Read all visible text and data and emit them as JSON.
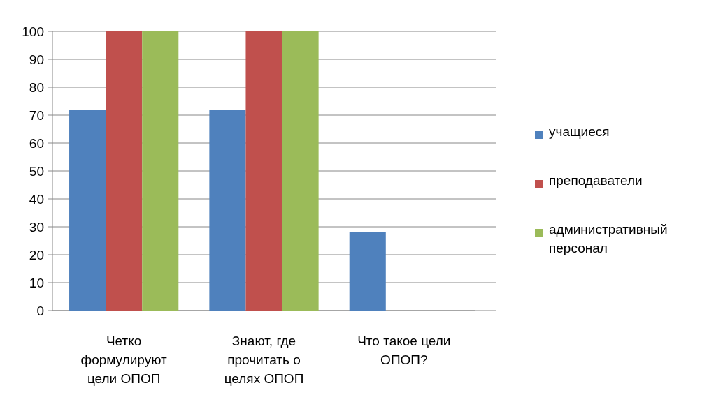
{
  "chart_data": {
    "type": "bar",
    "categories": [
      "Четко формулируют цели ОПОП",
      "Знают, где прочитать о целях ОПОП",
      "Что такое цели ОПОП?"
    ],
    "series": [
      {
        "name": "учащиеся",
        "color": "#4f81bd",
        "values": [
          72,
          72,
          28
        ]
      },
      {
        "name": "преподаватели",
        "color": "#c0504d",
        "values": [
          100,
          100,
          0
        ]
      },
      {
        "name": "административный персонал",
        "color": "#9bbb59",
        "values": [
          100,
          100,
          0
        ]
      }
    ],
    "ylim": [
      0,
      100
    ],
    "yticks": [
      0,
      10,
      20,
      30,
      40,
      50,
      60,
      70,
      80,
      90,
      100
    ],
    "grid": "y",
    "legend": "right"
  }
}
